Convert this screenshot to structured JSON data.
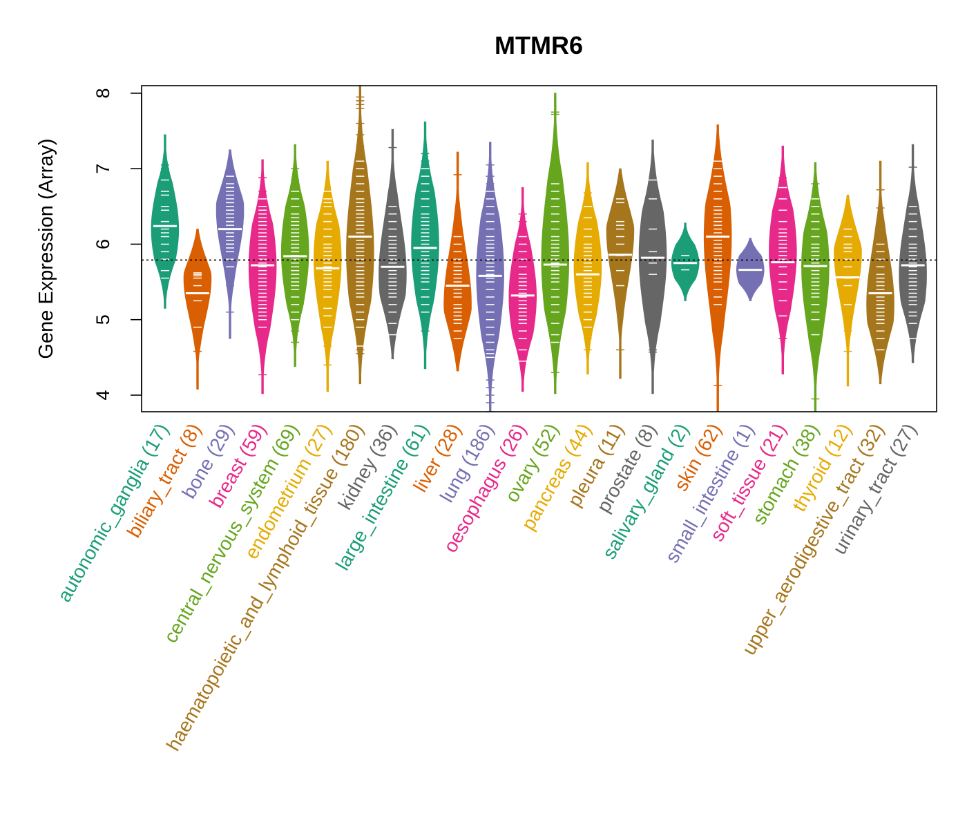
{
  "chart_data": {
    "type": "beanplot",
    "title": "MTMR6",
    "xlabel": "",
    "ylabel": "Gene Expression (Array)",
    "ylim": [
      3.78,
      8.1
    ],
    "yticks": [
      4,
      5,
      6,
      7,
      8
    ],
    "reference_line": 5.79,
    "categories": [
      {
        "name": "autonomic_ganglia",
        "n": 17,
        "color": "#1b9e77",
        "median": 6.24,
        "min": 5.15,
        "max": 7.45,
        "mode": 6.2,
        "points": [
          5.55,
          5.65,
          5.8,
          5.9,
          6.0,
          6.1,
          6.15,
          6.2,
          6.3,
          6.45,
          6.5,
          6.65,
          6.7,
          6.85,
          6.95,
          7.0,
          7.05
        ]
      },
      {
        "name": "biliary_tract",
        "n": 8,
        "color": "#d95f02",
        "median": 5.35,
        "min": 4.08,
        "max": 6.2,
        "mode": 5.55,
        "points": [
          4.58,
          4.9,
          5.25,
          5.45,
          5.55,
          5.58,
          5.6,
          5.62
        ]
      },
      {
        "name": "bone",
        "n": 29,
        "color": "#7570b3",
        "median": 6.2,
        "min": 4.75,
        "max": 7.25,
        "mode": 6.45,
        "points": [
          5.1,
          5.45,
          5.6,
          5.7,
          5.8,
          5.9,
          6.0,
          6.05,
          6.1,
          6.15,
          6.2,
          6.25,
          6.3,
          6.35,
          6.4,
          6.45,
          6.5,
          6.55,
          6.6,
          6.65,
          6.7,
          6.75,
          6.8,
          6.9,
          6.3,
          6.0,
          5.95,
          6.45,
          6.55
        ]
      },
      {
        "name": "breast",
        "n": 59,
        "color": "#e7298a",
        "median": 5.72,
        "min": 4.02,
        "max": 7.12,
        "mode": 5.7,
        "points": [
          4.27,
          4.9,
          5.0,
          5.05,
          5.1,
          5.15,
          5.2,
          5.25,
          5.3,
          5.35,
          5.4,
          5.45,
          5.5,
          5.55,
          5.6,
          5.65,
          5.7,
          5.75,
          5.8,
          5.85,
          5.9,
          5.95,
          6.0,
          6.05,
          6.1,
          6.15,
          6.2,
          6.25,
          6.3,
          6.35,
          6.4,
          6.45,
          6.5,
          6.6,
          6.7,
          6.88
        ]
      },
      {
        "name": "central_nervous_system",
        "n": 69,
        "color": "#66a61e",
        "median": 5.84,
        "min": 4.38,
        "max": 7.32,
        "mode": 5.9,
        "points": [
          4.7,
          4.85,
          5.0,
          5.1,
          5.2,
          5.3,
          5.4,
          5.45,
          5.5,
          5.55,
          5.6,
          5.65,
          5.7,
          5.75,
          5.8,
          5.85,
          5.9,
          5.95,
          6.0,
          6.05,
          6.1,
          6.15,
          6.2,
          6.25,
          6.3,
          6.35,
          6.4,
          6.5,
          6.6,
          6.7,
          6.85,
          7.0
        ]
      },
      {
        "name": "endometrium",
        "n": 27,
        "color": "#e6ab02",
        "median": 5.68,
        "min": 4.05,
        "max": 7.1,
        "mode": 5.8,
        "points": [
          4.4,
          4.65,
          4.9,
          5.05,
          5.15,
          5.3,
          5.4,
          5.5,
          5.55,
          5.6,
          5.7,
          5.75,
          5.8,
          5.85,
          5.9,
          5.95,
          6.0,
          6.1,
          6.2,
          6.3,
          6.4,
          6.5,
          6.55,
          6.6,
          6.7,
          5.65,
          5.45
        ]
      },
      {
        "name": "haematopoietic_and_lymphoid_tissue",
        "n": 180,
        "color": "#a6761d",
        "median": 6.1,
        "min": 4.15,
        "max": 8.1,
        "mode": 5.9,
        "points": [
          4.55,
          4.6,
          4.65,
          4.9,
          5.0,
          5.1,
          5.2,
          5.3,
          5.35,
          5.4,
          5.45,
          5.5,
          5.55,
          5.6,
          5.65,
          5.7,
          5.75,
          5.8,
          5.85,
          5.9,
          5.95,
          6.0,
          6.05,
          6.1,
          6.15,
          6.2,
          6.25,
          6.3,
          6.35,
          6.4,
          6.45,
          6.5,
          6.55,
          6.6,
          6.7,
          6.8,
          6.9,
          7.0,
          7.1,
          7.3,
          7.45,
          7.6,
          7.8,
          7.85,
          7.9,
          7.95
        ]
      },
      {
        "name": "kidney",
        "n": 36,
        "color": "#666666",
        "median": 5.7,
        "min": 4.48,
        "max": 7.52,
        "mode": 5.6,
        "points": [
          4.8,
          4.95,
          5.1,
          5.2,
          5.3,
          5.35,
          5.4,
          5.45,
          5.5,
          5.55,
          5.6,
          5.65,
          5.7,
          5.75,
          5.8,
          5.85,
          5.9,
          5.95,
          6.0,
          6.05,
          6.1,
          6.2,
          6.3,
          6.4,
          6.5,
          6.6,
          6.7,
          7.28
        ]
      },
      {
        "name": "large_intestine",
        "n": 61,
        "color": "#1b9e77",
        "median": 5.95,
        "min": 4.35,
        "max": 7.62,
        "mode": 6.0,
        "points": [
          4.85,
          4.95,
          5.1,
          5.2,
          5.3,
          5.4,
          5.5,
          5.55,
          5.6,
          5.65,
          5.7,
          5.75,
          5.8,
          5.85,
          5.9,
          5.95,
          6.0,
          6.05,
          6.1,
          6.15,
          6.2,
          6.25,
          6.3,
          6.35,
          6.4,
          6.5,
          6.6,
          6.7,
          6.8,
          6.9,
          7.0,
          7.1,
          7.2
        ]
      },
      {
        "name": "liver",
        "n": 28,
        "color": "#d95f02",
        "median": 5.45,
        "min": 4.32,
        "max": 7.22,
        "mode": 5.2,
        "points": [
          4.75,
          4.85,
          4.95,
          5.0,
          5.05,
          5.1,
          5.15,
          5.2,
          5.3,
          5.35,
          5.4,
          5.45,
          5.5,
          5.55,
          5.6,
          5.65,
          5.7,
          5.75,
          5.8,
          5.9,
          6.0,
          6.1,
          6.2,
          6.92
        ]
      },
      {
        "name": "lung",
        "n": 186,
        "color": "#7570b3",
        "median": 5.58,
        "min": 3.78,
        "max": 7.35,
        "mode": 5.6,
        "points": [
          3.78,
          3.9,
          4.0,
          4.1,
          4.2,
          4.5,
          4.55,
          4.6,
          4.7,
          4.8,
          4.9,
          5.0,
          5.1,
          5.2,
          5.3,
          5.4,
          5.5,
          5.55,
          5.6,
          5.65,
          5.7,
          5.75,
          5.8,
          5.85,
          5.9,
          5.95,
          6.0,
          6.05,
          6.1,
          6.2,
          6.3,
          6.4,
          6.5,
          6.6,
          6.7,
          6.8,
          6.9,
          7.05
        ]
      },
      {
        "name": "oesophagus",
        "n": 26,
        "color": "#e7298a",
        "median": 5.32,
        "min": 4.05,
        "max": 6.75,
        "mode": 5.3,
        "points": [
          4.45,
          4.6,
          4.75,
          4.85,
          4.95,
          5.05,
          5.1,
          5.2,
          5.25,
          5.3,
          5.35,
          5.4,
          5.5,
          5.55,
          5.6,
          5.7,
          5.8,
          5.9,
          6.0,
          6.1,
          6.2,
          6.3,
          6.4,
          5.45,
          5.15,
          5.0
        ]
      },
      {
        "name": "ovary",
        "n": 52,
        "color": "#66a61e",
        "median": 5.73,
        "min": 4.02,
        "max": 8.0,
        "mode": 5.8,
        "points": [
          4.3,
          4.7,
          4.8,
          4.95,
          5.1,
          5.2,
          5.3,
          5.4,
          5.5,
          5.55,
          5.6,
          5.65,
          5.7,
          5.75,
          5.8,
          5.85,
          5.9,
          5.95,
          6.0,
          6.05,
          6.1,
          6.2,
          6.3,
          6.4,
          6.5,
          6.6,
          6.7,
          6.8,
          7.72,
          7.75
        ]
      },
      {
        "name": "pancreas",
        "n": 44,
        "color": "#e6ab02",
        "median": 5.6,
        "min": 4.28,
        "max": 7.08,
        "mode": 5.7,
        "points": [
          4.6,
          4.75,
          4.9,
          5.0,
          5.1,
          5.2,
          5.3,
          5.35,
          5.4,
          5.45,
          5.5,
          5.55,
          5.6,
          5.65,
          5.7,
          5.75,
          5.8,
          5.85,
          5.9,
          5.95,
          6.0,
          6.1,
          6.2,
          6.35,
          6.5,
          6.62,
          6.68
        ]
      },
      {
        "name": "pleura",
        "n": 11,
        "color": "#a6761d",
        "median": 5.86,
        "min": 4.22,
        "max": 7.0,
        "mode": 6.2,
        "points": [
          4.6,
          5.45,
          5.65,
          5.85,
          6.0,
          6.1,
          6.2,
          6.25,
          6.3,
          6.6,
          6.55
        ]
      },
      {
        "name": "prostate",
        "n": 8,
        "color": "#666666",
        "median": 5.82,
        "min": 4.02,
        "max": 7.38,
        "mode": 5.85,
        "points": [
          4.57,
          4.6,
          5.6,
          5.75,
          5.9,
          6.2,
          6.6,
          6.85
        ]
      },
      {
        "name": "salivary_gland",
        "n": 2,
        "color": "#1b9e77",
        "median": 5.75,
        "min": 5.25,
        "max": 6.28,
        "mode": 5.75,
        "points": [
          5.66,
          5.85
        ]
      },
      {
        "name": "skin",
        "n": 62,
        "color": "#d95f02",
        "median": 6.1,
        "min": 3.78,
        "max": 7.58,
        "mode": 6.1,
        "points": [
          4.13,
          5.2,
          5.3,
          5.4,
          5.5,
          5.55,
          5.6,
          5.65,
          5.7,
          5.75,
          5.8,
          5.85,
          5.9,
          5.95,
          6.0,
          6.05,
          6.1,
          6.15,
          6.2,
          6.25,
          6.3,
          6.35,
          6.4,
          6.45,
          6.5,
          6.6,
          6.7,
          6.8,
          6.9,
          7.0,
          7.1
        ]
      },
      {
        "name": "small_intestine",
        "n": 1,
        "color": "#7570b3",
        "median": 5.66,
        "min": 5.25,
        "max": 6.08,
        "mode": 5.66,
        "points": [
          5.66
        ]
      },
      {
        "name": "soft_tissue",
        "n": 21,
        "color": "#e7298a",
        "median": 5.76,
        "min": 4.28,
        "max": 7.3,
        "mode": 5.9,
        "points": [
          4.75,
          5.05,
          5.25,
          5.4,
          5.5,
          5.6,
          5.7,
          5.8,
          5.85,
          5.9,
          5.95,
          6.0,
          6.05,
          6.1,
          6.15,
          6.2,
          6.3,
          6.45,
          6.6,
          6.75,
          6.88
        ]
      },
      {
        "name": "stomach",
        "n": 38,
        "color": "#66a61e",
        "median": 5.71,
        "min": 3.78,
        "max": 7.08,
        "mode": 5.7,
        "points": [
          3.95,
          4.6,
          4.8,
          5.0,
          5.1,
          5.2,
          5.3,
          5.35,
          5.4,
          5.45,
          5.5,
          5.55,
          5.6,
          5.65,
          5.7,
          5.75,
          5.8,
          5.85,
          5.9,
          5.95,
          6.0,
          6.1,
          6.2,
          6.3,
          6.4,
          6.5,
          6.6,
          6.8
        ]
      },
      {
        "name": "thyroid",
        "n": 12,
        "color": "#e6ab02",
        "median": 5.56,
        "min": 4.12,
        "max": 6.65,
        "mode": 5.9,
        "points": [
          4.58,
          4.85,
          5.2,
          5.45,
          5.55,
          5.7,
          5.8,
          5.9,
          6.0,
          6.1,
          6.2,
          5.95
        ]
      },
      {
        "name": "upper_aerodigestive_tract",
        "n": 32,
        "color": "#a6761d",
        "median": 5.35,
        "min": 4.15,
        "max": 7.1,
        "mode": 5.2,
        "points": [
          4.6,
          4.75,
          4.85,
          4.95,
          5.0,
          5.05,
          5.1,
          5.15,
          5.2,
          5.25,
          5.3,
          5.35,
          5.4,
          5.45,
          5.5,
          5.55,
          5.6,
          5.7,
          5.8,
          5.9,
          6.0,
          6.48,
          6.72
        ]
      },
      {
        "name": "urinary_tract",
        "n": 27,
        "color": "#666666",
        "median": 5.72,
        "min": 4.43,
        "max": 7.32,
        "mode": 5.6,
        "points": [
          4.75,
          4.95,
          5.1,
          5.2,
          5.3,
          5.35,
          5.4,
          5.45,
          5.5,
          5.55,
          5.6,
          5.65,
          5.7,
          5.75,
          5.8,
          5.85,
          5.9,
          5.95,
          6.0,
          6.1,
          6.2,
          6.3,
          6.4,
          6.5,
          7.02,
          5.25,
          5.05
        ]
      }
    ]
  }
}
